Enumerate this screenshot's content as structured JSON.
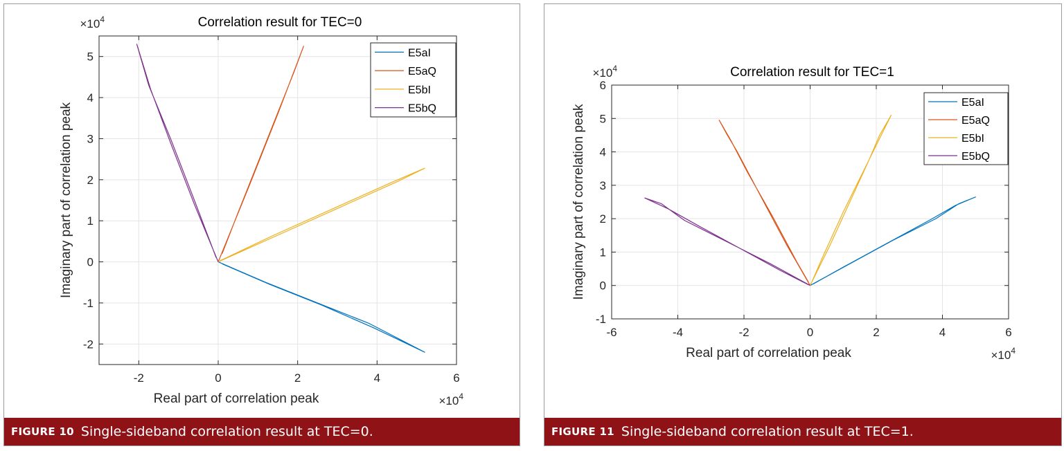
{
  "figures": [
    {
      "caption_label": "FIGURE 10",
      "caption_text": "Single-sideband correlation result at TEC=0.",
      "chart_data": {
        "type": "line",
        "title": "Correlation result for TEC=0",
        "xlabel": "Real part of correlation peak",
        "ylabel": "Imaginary part of correlation peak",
        "x_multiplier": "×10",
        "x_multiplier_exp": "4",
        "y_multiplier": "×10",
        "y_multiplier_exp": "4",
        "xlim": [
          -3,
          6
        ],
        "ylim": [
          -2.5,
          5.5
        ],
        "xticks": [
          -2,
          0,
          2,
          4,
          6
        ],
        "xtick_labels": [
          "-2",
          "0",
          "2",
          "4",
          "6"
        ],
        "yticks": [
          -2,
          -1,
          0,
          1,
          2,
          3,
          4,
          5
        ],
        "ytick_labels": [
          "-2",
          "-1",
          "0",
          "1",
          "2",
          "3",
          "4",
          "5"
        ],
        "grid": true,
        "legend_position": "top-right",
        "series": [
          {
            "name": "E5aI",
            "color": "#0072bd",
            "points": [
              [
                0,
                0
              ],
              [
                1.2,
                -0.5
              ],
              [
                2.5,
                -1.0
              ],
              [
                3.8,
                -1.5
              ],
              [
                5.2,
                -2.2
              ],
              [
                3.9,
                -1.6
              ],
              [
                2.6,
                -1.05
              ],
              [
                1.3,
                -0.55
              ],
              [
                0.1,
                -0.05
              ]
            ]
          },
          {
            "name": "E5aQ",
            "color": "#d95319",
            "points": [
              [
                0,
                0
              ],
              [
                0.8,
                1.9
              ],
              [
                1.5,
                3.6
              ],
              [
                2.15,
                5.25
              ],
              [
                1.9,
                4.6
              ],
              [
                1.2,
                2.9
              ],
              [
                0.5,
                1.2
              ],
              [
                0.1,
                0.2
              ]
            ]
          },
          {
            "name": "E5bI",
            "color": "#edb120",
            "points": [
              [
                0,
                0
              ],
              [
                1.5,
                0.65
              ],
              [
                3.0,
                1.3
              ],
              [
                4.5,
                1.95
              ],
              [
                5.2,
                2.28
              ],
              [
                4.4,
                1.95
              ],
              [
                2.9,
                1.3
              ],
              [
                1.4,
                0.65
              ],
              [
                0.05,
                0.03
              ]
            ]
          },
          {
            "name": "E5bQ",
            "color": "#7e2f8e",
            "points": [
              [
                0,
                0
              ],
              [
                -0.6,
                1.4
              ],
              [
                -1.2,
                2.9
              ],
              [
                -1.7,
                4.2
              ],
              [
                -2.05,
                5.3
              ],
              [
                -1.75,
                4.3
              ],
              [
                -1.2,
                3.0
              ],
              [
                -0.6,
                1.5
              ],
              [
                -0.05,
                0.1
              ]
            ]
          }
        ]
      }
    },
    {
      "caption_label": "FIGURE 11",
      "caption_text": "Single-sideband correlation result at TEC=1.",
      "chart_data": {
        "type": "line",
        "title": "Correlation result for TEC=1",
        "xlabel": "Real part of correlation peak",
        "ylabel": "Imaginary part of correlation peak",
        "x_multiplier": "×10",
        "x_multiplier_exp": "4",
        "y_multiplier": "×10",
        "y_multiplier_exp": "4",
        "xlim": [
          -6,
          6
        ],
        "ylim": [
          -1,
          6
        ],
        "xticks": [
          -6,
          -4,
          -2,
          0,
          2,
          4,
          6
        ],
        "xtick_labels": [
          "-6",
          "-4",
          "-2",
          "0",
          "2",
          "4",
          "6"
        ],
        "yticks": [
          -1,
          0,
          1,
          2,
          3,
          4,
          5,
          6
        ],
        "ytick_labels": [
          "-1",
          "0",
          "1",
          "2",
          "3",
          "4",
          "5",
          "6"
        ],
        "grid": true,
        "legend_position": "top-right",
        "series": [
          {
            "name": "E5aI",
            "color": "#0072bd",
            "points": [
              [
                0,
                0
              ],
              [
                1.2,
                0.65
              ],
              [
                2.5,
                1.35
              ],
              [
                3.8,
                2.0
              ],
              [
                4.5,
                2.45
              ],
              [
                5.0,
                2.65
              ],
              [
                4.4,
                2.4
              ],
              [
                3.6,
                1.95
              ],
              [
                2.3,
                1.25
              ],
              [
                1.0,
                0.55
              ],
              [
                0.1,
                0.05
              ]
            ]
          },
          {
            "name": "E5aQ",
            "color": "#d95319",
            "points": [
              [
                0,
                0
              ],
              [
                -0.7,
                1.2
              ],
              [
                -1.4,
                2.5
              ],
              [
                -2.2,
                4.0
              ],
              [
                -2.5,
                4.5
              ],
              [
                -2.75,
                4.95
              ],
              [
                -2.4,
                4.35
              ],
              [
                -1.9,
                3.4
              ],
              [
                -1.1,
                2.0
              ],
              [
                -0.4,
                0.7
              ],
              [
                -0.05,
                0.1
              ]
            ]
          },
          {
            "name": "E5bI",
            "color": "#edb120",
            "points": [
              [
                0,
                0
              ],
              [
                0.6,
                1.2
              ],
              [
                1.2,
                2.5
              ],
              [
                1.8,
                3.8
              ],
              [
                2.1,
                4.5
              ],
              [
                2.45,
                5.1
              ],
              [
                2.2,
                4.6
              ],
              [
                1.7,
                3.6
              ],
              [
                1.0,
                2.2
              ],
              [
                0.4,
                0.9
              ],
              [
                0.05,
                0.1
              ]
            ]
          },
          {
            "name": "E5bQ",
            "color": "#7e2f8e",
            "points": [
              [
                0,
                0
              ],
              [
                -1.2,
                0.65
              ],
              [
                -2.5,
                1.3
              ],
              [
                -3.8,
                1.95
              ],
              [
                -4.5,
                2.45
              ],
              [
                -5.0,
                2.62
              ],
              [
                -4.3,
                2.3
              ],
              [
                -3.4,
                1.8
              ],
              [
                -2.1,
                1.1
              ],
              [
                -0.9,
                0.45
              ],
              [
                -0.05,
                0.02
              ]
            ]
          }
        ]
      }
    }
  ]
}
